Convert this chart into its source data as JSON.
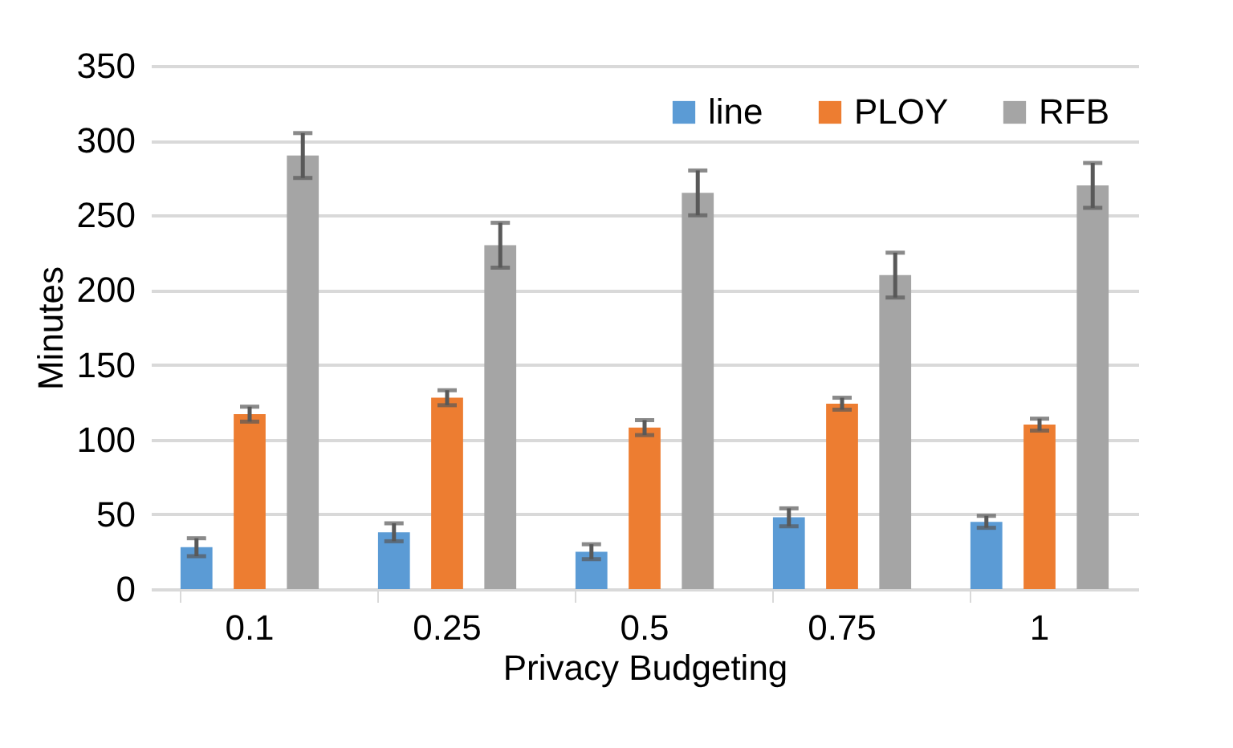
{
  "chart_data": {
    "type": "bar",
    "xlabel": "Privacy Budgeting",
    "ylabel": "Minutes",
    "categories": [
      "0.1",
      "0.25",
      "0.5",
      "0.75",
      "1"
    ],
    "series": [
      {
        "name": "line",
        "color": "#5b9bd5",
        "values": [
          28,
          38,
          25,
          48,
          45
        ],
        "errors": [
          6,
          6,
          5,
          6,
          4
        ]
      },
      {
        "name": "PLOY",
        "color": "#ed7d31",
        "values": [
          117,
          128,
          108,
          124,
          110
        ],
        "errors": [
          5,
          5,
          5,
          4,
          4
        ]
      },
      {
        "name": "RFB",
        "color": "#a5a5a5",
        "values": [
          290,
          230,
          265,
          210,
          270
        ],
        "errors": [
          15,
          15,
          15,
          15,
          15
        ]
      }
    ],
    "ylim": [
      0,
      350
    ],
    "yticks": [
      0,
      50,
      100,
      150,
      200,
      250,
      300,
      350
    ],
    "grid": "y",
    "legend": "top right"
  }
}
